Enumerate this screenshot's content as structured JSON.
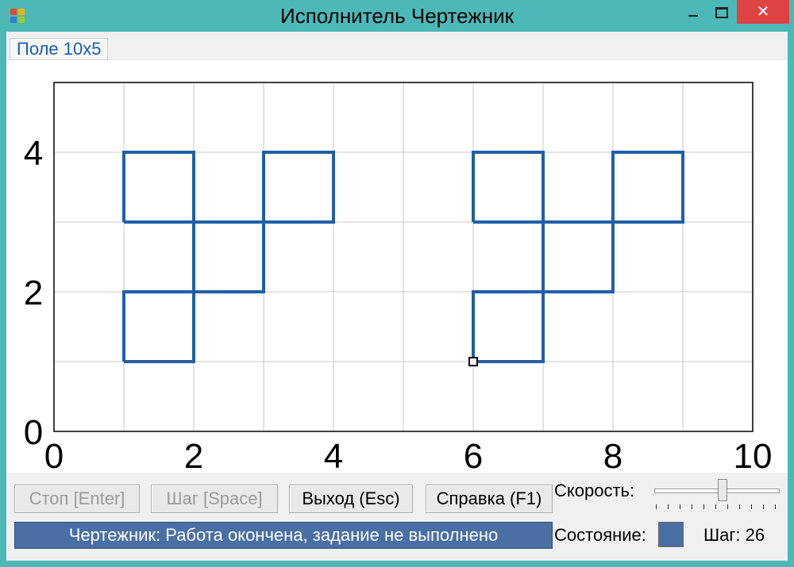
{
  "window": {
    "title": "Исполнитель Чертежник",
    "close_glyph": "✕"
  },
  "menu": {
    "field_label": "Поле 10x5"
  },
  "canvas": {
    "x_ticks": [
      "0",
      "2",
      "4",
      "6",
      "8",
      "10"
    ],
    "y_ticks": [
      "0",
      "2",
      "4"
    ],
    "grid_x_max": 10,
    "grid_y_max": 5,
    "path_color": "#1f5fa8",
    "path": [
      [
        [
          1,
          1
        ],
        [
          2,
          1
        ],
        [
          2,
          2
        ],
        [
          1,
          2
        ],
        [
          1,
          1
        ]
      ],
      [
        [
          2,
          2
        ],
        [
          3,
          2
        ],
        [
          3,
          3
        ],
        [
          2,
          3
        ],
        [
          2,
          2
        ]
      ],
      [
        [
          1,
          3
        ],
        [
          2,
          3
        ],
        [
          2,
          4
        ],
        [
          1,
          4
        ],
        [
          1,
          3
        ]
      ],
      [
        [
          3,
          3
        ],
        [
          4,
          3
        ],
        [
          4,
          4
        ],
        [
          3,
          4
        ],
        [
          3,
          3
        ]
      ],
      [
        [
          6,
          1
        ],
        [
          7,
          1
        ],
        [
          7,
          2
        ],
        [
          6,
          2
        ],
        [
          6,
          1
        ]
      ],
      [
        [
          7,
          2
        ],
        [
          8,
          2
        ],
        [
          8,
          3
        ],
        [
          7,
          3
        ],
        [
          7,
          2
        ]
      ],
      [
        [
          6,
          3
        ],
        [
          7,
          3
        ],
        [
          7,
          4
        ],
        [
          6,
          4
        ],
        [
          6,
          3
        ]
      ],
      [
        [
          8,
          3
        ],
        [
          9,
          3
        ],
        [
          9,
          4
        ],
        [
          8,
          4
        ],
        [
          8,
          3
        ]
      ]
    ],
    "pen_position": [
      6,
      1
    ]
  },
  "controls": {
    "stop_label": "Стоп [Enter]",
    "step_label": "Шаг [Space]",
    "exit_label": "Выход (Esc)",
    "help_label": "Справка (F1)",
    "speed_label": "Скорость:",
    "speed_value": 0.55,
    "status_text": "Чертежник: Работа окончена, задание не выполнено",
    "state_label": "Состояние:",
    "step_counter": "Шаг: 26"
  }
}
